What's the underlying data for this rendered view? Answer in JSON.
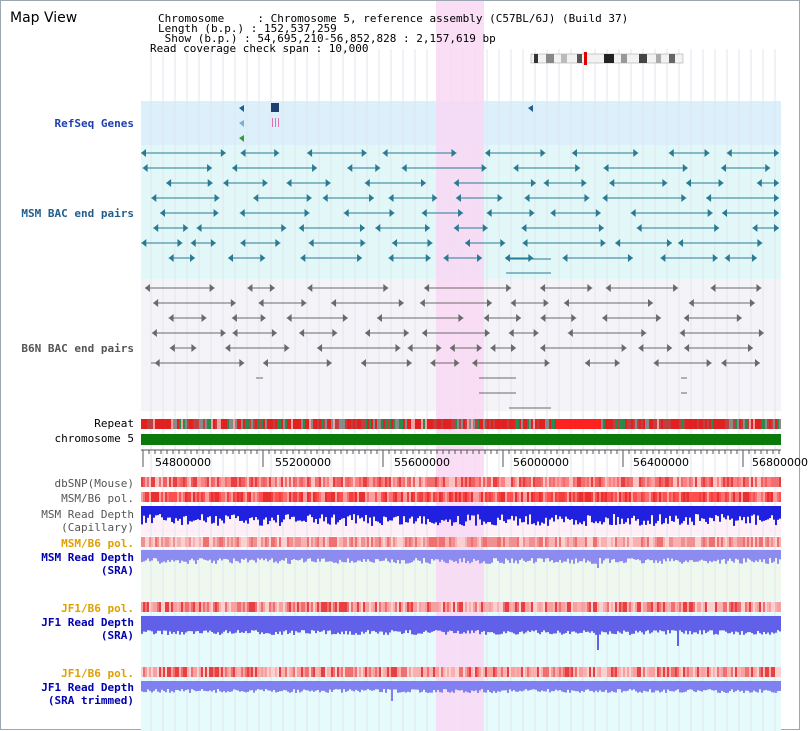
{
  "view_title": "Map View",
  "header": {
    "line1": "Chromosome     : Chromosome 5, reference assembly (C57BL/6J) (Build 37)",
    "line2": "Length (b.p.) : 152,537,259",
    "line3": " Show (b.p.) : 54,695,210-56,852,828 : 2,157,619 bp",
    "line4": "Read coverage check span : 10,000"
  },
  "tracks": {
    "refseq": "RefSeq Genes",
    "msm_bac": "MSM BAC end pairs",
    "b6n_bac": "B6N BAC end pairs",
    "repeat": "Repeat",
    "chromosome": "chromosome 5",
    "dbsnp": "dbSNP(Mouse)",
    "msm_b6_pol": "MSM/B6 pol.",
    "msm_depth_cap": "MSM Read Depth\n(Capillary)",
    "msm_b6_pol2": "MSM/B6 pol.",
    "msm_depth_sra": "MSM Read Depth\n(SRA)",
    "jf1_b6_pol": "JF1/B6 pol.",
    "jf1_depth_sra": "JF1 Read Depth\n(SRA)",
    "jf1_b6_pol2": "JF1/B6 pol.",
    "jf1_depth_trim": "JF1 Read Depth\n(SRA trimmed)"
  },
  "axis": {
    "ticks": [
      "54800000",
      "55200000",
      "55600000",
      "56000000",
      "56400000",
      "56800000"
    ]
  },
  "colors": {
    "refseq_label": "#1f3faf",
    "msm_label": "#1f5f8f",
    "b6n_label": "#555555",
    "orange_label": "#e0a000",
    "blue_label": "#0000b0",
    "highlight": "#f8d8f4",
    "chromosome_bar": "#0a7a0a"
  }
}
